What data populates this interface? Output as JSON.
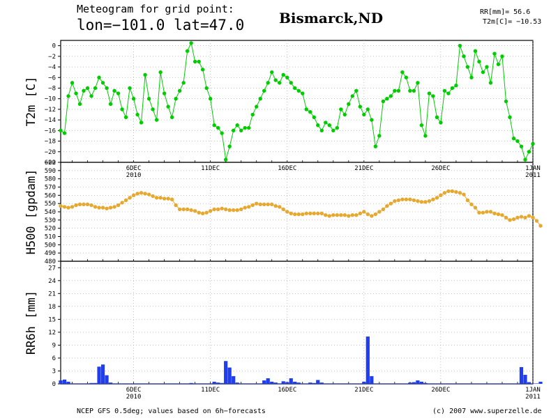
{
  "header": {
    "title_line1": "Meteogram for grid point:",
    "title_line2": "lon=−101.0 lat=47.0",
    "location": "Bismarck,ND",
    "rr_total": "RR[mm]= 56.6",
    "t2m_current": "T2m[C]= −10.53"
  },
  "footer": {
    "left": "NCEP GFS 0.5deg; values based on 6h−forecasts",
    "right": "(c) 2007 www.superzelle.de"
  },
  "chart_data": [
    {
      "type": "line",
      "ylabel": "T2m [C]",
      "ylim": [
        -22,
        1
      ],
      "yticks": [
        0,
        -2,
        -4,
        -6,
        -8,
        -10,
        -12,
        -14,
        -16,
        -18,
        -20,
        -22
      ],
      "x_range": [
        "2010-12-01 06Z",
        "2011-01-01 06Z"
      ],
      "x_step_hours": 6,
      "color": "#00cc00",
      "values": [
        -16.0,
        -16.5,
        -9.5,
        -7.0,
        -9.0,
        -11.0,
        -8.5,
        -8.0,
        -9.5,
        -8.0,
        -6.0,
        -7.0,
        -8.0,
        -11.0,
        -8.5,
        -9.0,
        -12.0,
        -13.5,
        -8.0,
        -10.0,
        -13.0,
        -14.5,
        -5.5,
        -10.0,
        -12.0,
        -14.0,
        -5.0,
        -9.0,
        -11.5,
        -13.5,
        -10.0,
        -8.5,
        -7.0,
        -1.0,
        0.5,
        -3.0,
        -3.0,
        -4.5,
        -8.0,
        -10.0,
        -15.0,
        -15.5,
        -16.5,
        -21.5,
        -19.0,
        -16.0,
        -15.0,
        -16.0,
        -15.5,
        -15.5,
        -13.0,
        -11.5,
        -10.0,
        -8.5,
        -7.0,
        -5.0,
        -6.5,
        -7.0,
        -5.5,
        -6.0,
        -7.0,
        -8.0,
        -8.5,
        -9.0,
        -12.0,
        -12.5,
        -13.5,
        -15.0,
        -16.0,
        -14.5,
        -15.0,
        -16.0,
        -15.5,
        -12.0,
        -13.0,
        -11.0,
        -9.5,
        -8.5,
        -11.5,
        -13.0,
        -12.0,
        -14.0,
        -19.0,
        -17.0,
        -10.5,
        -10.0,
        -9.5,
        -8.5,
        -8.5,
        -5.0,
        -6.0,
        -8.5,
        -8.5,
        -7.0,
        -15.0,
        -17.0,
        -9.0,
        -9.5,
        -13.5,
        -14.5,
        -8.5,
        -9.0,
        -8.0,
        -7.5,
        0.0,
        -2.0,
        -4.0,
        -6.0,
        -1.0,
        -3.0,
        -5.0,
        -4.0,
        -7.0,
        -1.5,
        -3.5,
        -2.0,
        -10.5,
        -13.5,
        -17.5,
        -18.0,
        -19.0,
        -21.5,
        -20.0,
        -18.5
      ]
    },
    {
      "type": "line",
      "ylabel": "H500 [gpdam]",
      "ylim": [
        480,
        600
      ],
      "yticks": [
        480,
        490,
        500,
        510,
        520,
        530,
        540,
        550,
        560,
        570,
        580,
        590,
        600
      ],
      "x_range": [
        "2010-12-01 06Z",
        "2011-01-01 06Z"
      ],
      "x_step_hours": 6,
      "color": "#e6a82e",
      "values": [
        547,
        546,
        545,
        546,
        548,
        549,
        549,
        549,
        548,
        546,
        545,
        545,
        544,
        545,
        546,
        548,
        551,
        554,
        557,
        560,
        562,
        563,
        562,
        561,
        559,
        557,
        557,
        556,
        556,
        555,
        548,
        543,
        543,
        543,
        542,
        541,
        539,
        538,
        539,
        541,
        543,
        543,
        544,
        543,
        542,
        542,
        542,
        543,
        545,
        546,
        548,
        550,
        549,
        549,
        549,
        549,
        547,
        546,
        543,
        540,
        538,
        537,
        537,
        537,
        538,
        538,
        538,
        538,
        538,
        536,
        535,
        536,
        536,
        536,
        536,
        535,
        536,
        536,
        538,
        540,
        537,
        535,
        537,
        540,
        543,
        547,
        550,
        553,
        554,
        555,
        555,
        555,
        554,
        553,
        552,
        552,
        553,
        555,
        557,
        560,
        563,
        565,
        565,
        564,
        563,
        561,
        554,
        549,
        545,
        539,
        539,
        540,
        540,
        538,
        537,
        536,
        533,
        530,
        531,
        533,
        534,
        533,
        535,
        533,
        529,
        523
      ]
    },
    {
      "type": "bar",
      "ylabel": "RR6h [mm]",
      "ylim": [
        0,
        28.5
      ],
      "yticks": [
        0,
        3,
        6,
        9,
        12,
        15,
        18,
        21,
        24,
        27
      ],
      "x_range": [
        "2010-12-01 06Z",
        "2011-01-01 06Z"
      ],
      "x_step_hours": 6,
      "color": "#1e3ef0",
      "values": [
        0.8,
        1.0,
        0.5,
        0.1,
        0.0,
        0.0,
        0.0,
        0.1,
        0.2,
        0.2,
        4.0,
        4.5,
        2.0,
        0.3,
        0.1,
        0.1,
        0.0,
        0.0,
        0.0,
        0.0,
        0.0,
        0.0,
        0.0,
        0.0,
        0.0,
        0.0,
        0.0,
        0.0,
        0.1,
        0.0,
        0.0,
        0.0,
        0.1,
        0.1,
        0.2,
        0.1,
        0.0,
        0.1,
        0.1,
        0.1,
        0.5,
        0.3,
        0.2,
        5.3,
        3.8,
        1.8,
        0.3,
        0.1,
        0.0,
        0.0,
        0.0,
        0.0,
        0.1,
        0.8,
        1.3,
        0.5,
        0.3,
        0.1,
        0.6,
        0.4,
        1.3,
        0.5,
        0.3,
        0.0,
        0.0,
        0.3,
        0.2,
        0.9,
        0.3,
        0.0,
        0.0,
        0.0,
        0.0,
        0.0,
        0.0,
        0.0,
        0.0,
        0.0,
        0.0,
        0.5,
        11.0,
        1.8,
        0.1,
        0.0,
        0.0,
        0.0,
        0.0,
        0.0,
        0.0,
        0.0,
        0.0,
        0.3,
        0.4,
        0.8,
        0.5,
        0.2,
        0.1,
        0.1,
        0.1,
        0.0,
        0.0,
        0.1,
        0.1,
        0.0,
        0.0,
        0.0,
        0.0,
        0.0,
        0.0,
        0.0,
        0.0,
        0.0,
        0.0,
        0.0,
        0.0,
        0.1,
        0.0,
        0.0,
        0.0,
        0.0,
        3.9,
        2.1,
        0.4,
        0.0,
        0.0,
        0.5
      ]
    }
  ],
  "x_axis": {
    "ticks": [
      {
        "label": "6DEC",
        "sub": "2010",
        "day_offset": 5
      },
      {
        "label": "11DEC",
        "sub": "",
        "day_offset": 10
      },
      {
        "label": "16DEC",
        "sub": "",
        "day_offset": 15
      },
      {
        "label": "21DEC",
        "sub": "",
        "day_offset": 20
      },
      {
        "label": "26DEC",
        "sub": "",
        "day_offset": 25
      },
      {
        "label": "1JAN",
        "sub": "2011",
        "day_offset": 31
      }
    ]
  }
}
